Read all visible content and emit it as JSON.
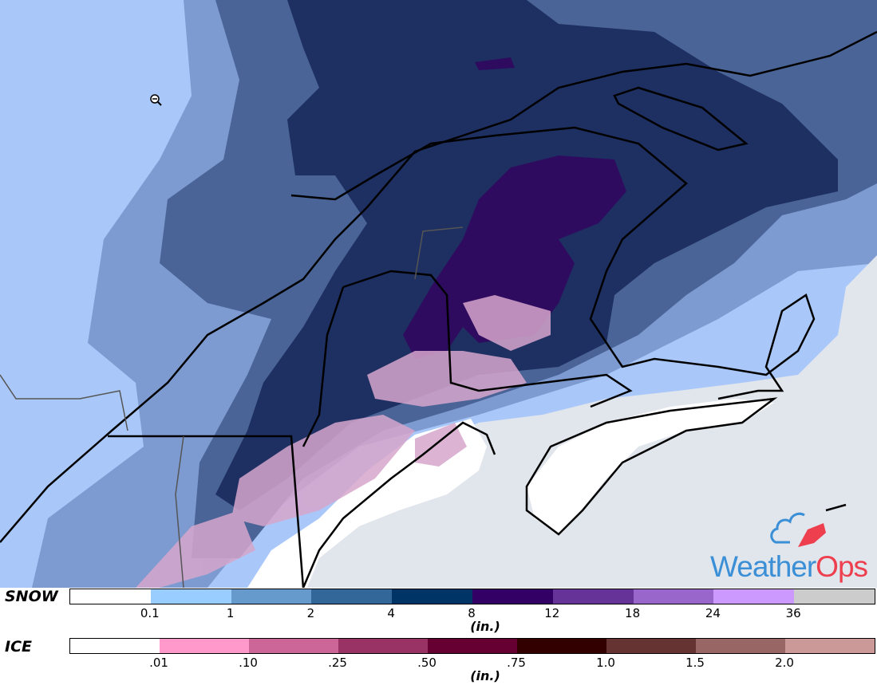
{
  "map": {
    "colors": {
      "base": "#a9c8f9",
      "light": "#7d9bd0",
      "medium": "#4a6497",
      "dark": "#1e2f62",
      "purple": "#2e0b5f",
      "ocean": "#e1e5ec",
      "ice": "#e6b8d8"
    },
    "zoom_icon": "zoom-out-icon"
  },
  "logo": {
    "text_weather": "Weather",
    "text_ops": "Ops",
    "blue": "#3a8fd6",
    "red": "#ee3f4f"
  },
  "snow_legend": {
    "label": "SNOW",
    "unit": "(in.)",
    "colors": [
      "#ffffff",
      "#99ccff",
      "#6699cc",
      "#336699",
      "#003366",
      "#330066",
      "#663399",
      "#9966cc",
      "#cc99ff",
      "#cccccc"
    ],
    "ticks": [
      "0.1",
      "1",
      "2",
      "4",
      "8",
      "12",
      "18",
      "24",
      "36"
    ]
  },
  "ice_legend": {
    "label": "ICE",
    "unit": "(in.)",
    "colors": [
      "#ffffff",
      "#ff99cc",
      "#cc6699",
      "#993366",
      "#660033",
      "#330000",
      "#663333",
      "#996666",
      "#cc9999"
    ],
    "ticks": [
      ".01",
      ".10",
      ".25",
      ".50",
      ".75",
      "1.0",
      "1.5",
      "2.0"
    ]
  }
}
